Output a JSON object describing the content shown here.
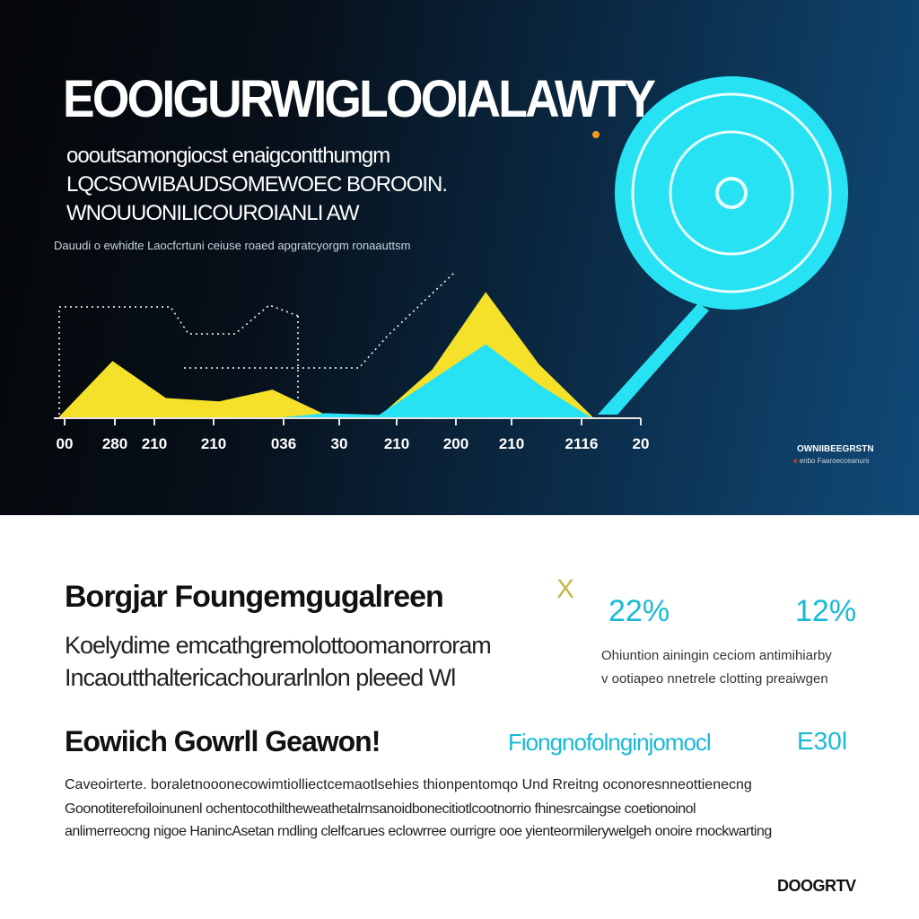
{
  "header": {
    "title": "EOOIGURWIGLOOIALAWTY",
    "subtitle_lines": [
      "oooutsamongiocst enaigcontthumgm",
      "LQCSOWIBAUDSOMEWOEC BOROOIN.",
      "WNOUUONILICOUROIANLI AW"
    ],
    "note": "Dauudi o ewhidte Laocfcrtuni ceiuse roaed apgratcyorgm ronaauttsm"
  },
  "chart_data": {
    "type": "area",
    "x_tick_labels": [
      "00",
      "280",
      "210",
      "210",
      "036",
      "30",
      "210",
      "200",
      "210",
      "2116",
      "20"
    ],
    "series": [
      {
        "color": "#f5e12a",
        "values": [
          2,
          68,
          24,
          20,
          34,
          4,
          2,
          58,
          150,
          64,
          2
        ]
      },
      {
        "color": "#27e2f2",
        "values": [
          0,
          0,
          0,
          0,
          0,
          6,
          4,
          46,
          88,
          40,
          0
        ]
      }
    ],
    "ylim": [
      0,
      160
    ],
    "grid": false,
    "colors": {
      "yellow": "#f5e12a",
      "cyan": "#27e2f2"
    },
    "legend": {
      "title": "OWNIIBEEGRSTN",
      "marker": "e",
      "text": "enbo Faaroecceanurs"
    }
  },
  "target_icon": "target-icon",
  "section1": {
    "title": "Borgjar Foungemgugalreen",
    "body_lines": [
      "Koelydime emcathgremolottoomanorroram",
      "Incaoutthaltericachourarlnlon pleeed Wl"
    ],
    "close_glyph": "X",
    "stats": [
      {
        "value": "22%"
      },
      {
        "value": "12%"
      }
    ],
    "stats_note_lines": [
      "Ohiuntion ainingin ceciom antimihiarby",
      "v ootiapeo nnetrele clotting preaiwgen"
    ]
  },
  "section2": {
    "title": "Eowiich Gowrll Geawon!",
    "highlight": "Fiongnofolnginjomocl",
    "code": "E30l",
    "body_lines": [
      "Caveoirterte. boraletnooonecowimtiolliectcemaotlsehies thionpentomqo Und Rreitng oconoresnneottienecng",
      "Goonotiterefoiloinunenl ochentocothiltheweathetalrnsanoidbonecitiotlcootnorrio fhinesrcaingse coetionoinol",
      "anlimerreocng nigoe HanincAsetan rndling clelfcarues eclowrree ourrigre ooe yienteormilerywelgeh onoire rnockwarting"
    ]
  },
  "footer": {
    "brand": "DOOGRTV"
  }
}
